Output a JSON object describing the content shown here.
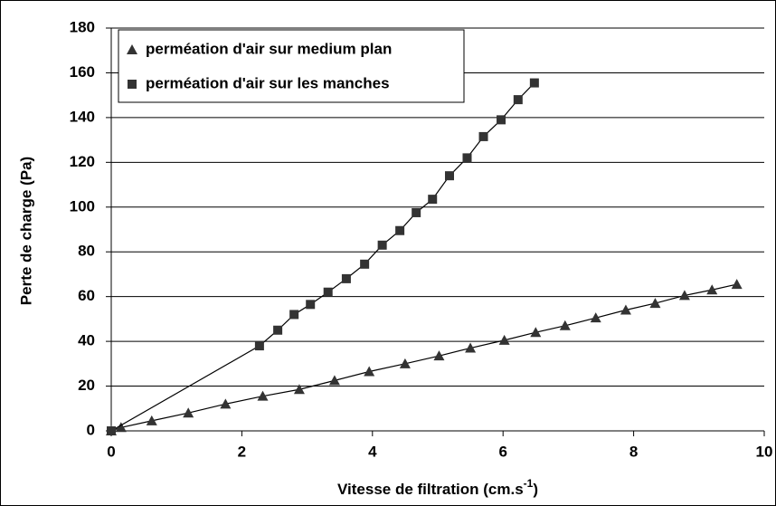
{
  "chart_data": {
    "type": "scatter",
    "xlabel": {
      "text": "Vitesse de filtration (cm.s",
      "superscript": "-1",
      "suffix": ")"
    },
    "ylabel": "Perte de charge (Pa)",
    "xlim": [
      0,
      10
    ],
    "xticks": [
      0,
      2,
      4,
      6,
      8,
      10
    ],
    "ylim": [
      0,
      180
    ],
    "yticks": [
      0,
      20,
      40,
      60,
      80,
      100,
      120,
      140,
      160,
      180
    ],
    "grid": true,
    "legend": "upper left",
    "lines": true,
    "series": [
      {
        "name": "perméation d'air sur medium plan",
        "marker": "triangle",
        "color": "#333333",
        "x": [
          0,
          0.15,
          0.62,
          1.18,
          1.75,
          2.32,
          2.88,
          3.42,
          3.95,
          4.5,
          5.02,
          5.5,
          6.02,
          6.5,
          6.95,
          7.42,
          7.88,
          8.33,
          8.78,
          9.2,
          9.58
        ],
        "values": [
          0,
          1.5,
          4.5,
          8,
          12,
          15.5,
          18.5,
          22.5,
          26.5,
          30,
          33.5,
          37,
          40.5,
          44,
          47,
          50.5,
          54,
          57,
          60.5,
          63,
          65.5
        ]
      },
      {
        "name": "perméation d'air sur les manches",
        "marker": "square",
        "color": "#333333",
        "x": [
          0,
          2.27,
          2.55,
          2.8,
          3.05,
          3.32,
          3.6,
          3.88,
          4.15,
          4.42,
          4.67,
          4.92,
          5.18,
          5.45,
          5.7,
          5.97,
          6.23,
          6.48
        ],
        "values": [
          0,
          38,
          45,
          52,
          56.5,
          62,
          68,
          74.5,
          83,
          89.5,
          97.5,
          103.5,
          114,
          122,
          131.5,
          139,
          148,
          155.5
        ]
      }
    ]
  }
}
